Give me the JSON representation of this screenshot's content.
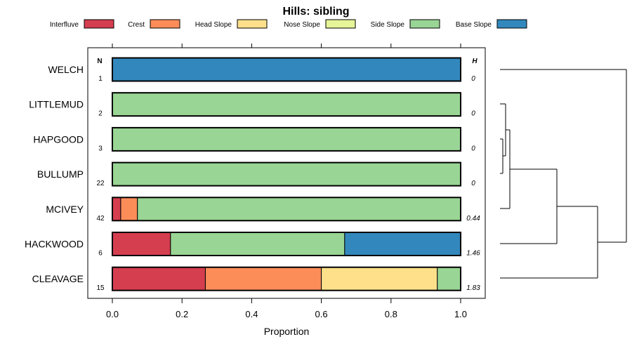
{
  "chart_data": {
    "type": "bar",
    "orientation": "horizontal",
    "stacked": true,
    "title": "Hills: sibling",
    "xlabel": "Proportion",
    "ylabel": "",
    "xlim": [
      0,
      1
    ],
    "x_ticks": [
      "0.0",
      "0.2",
      "0.4",
      "0.6",
      "0.8",
      "1.0"
    ],
    "x_tick_values": [
      0,
      0.2,
      0.4,
      0.6,
      0.8,
      1.0
    ],
    "n_header": "N",
    "h_header": "H",
    "legend_position": "top",
    "series": [
      {
        "name": "Interfluve",
        "color": "#D53E4F"
      },
      {
        "name": "Crest",
        "color": "#FC8D59"
      },
      {
        "name": "Head Slope",
        "color": "#FEE08B"
      },
      {
        "name": "Nose Slope",
        "color": "#E6F598"
      },
      {
        "name": "Side Slope",
        "color": "#99D594"
      },
      {
        "name": "Base Slope",
        "color": "#3288BD"
      }
    ],
    "rows": [
      {
        "label": "WELCH",
        "n": "1",
        "h": "0",
        "values": [
          0,
          0,
          0,
          0,
          0,
          1
        ]
      },
      {
        "label": "LITTLEMUD",
        "n": "2",
        "h": "0",
        "values": [
          0,
          0,
          0,
          0,
          1,
          0
        ]
      },
      {
        "label": "HAPGOOD",
        "n": "3",
        "h": "0",
        "values": [
          0,
          0,
          0,
          0,
          1,
          0
        ]
      },
      {
        "label": "BULLUMP",
        "n": "22",
        "h": "0",
        "values": [
          0,
          0,
          0,
          0,
          1,
          0
        ]
      },
      {
        "label": "MCIVEY",
        "n": "42",
        "h": "0.44",
        "values": [
          0.024,
          0.048,
          0,
          0,
          0.928,
          0
        ]
      },
      {
        "label": "HACKWOOD",
        "n": "6",
        "h": "1.46",
        "values": [
          0.167,
          0,
          0,
          0,
          0.5,
          0.333
        ]
      },
      {
        "label": "CLEAVAGE",
        "n": "15",
        "h": "1.83",
        "values": [
          0.267,
          0.333,
          0.333,
          0,
          0.067,
          0
        ]
      }
    ],
    "dendrogram": "hierarchical clustering of rows shown at right"
  }
}
